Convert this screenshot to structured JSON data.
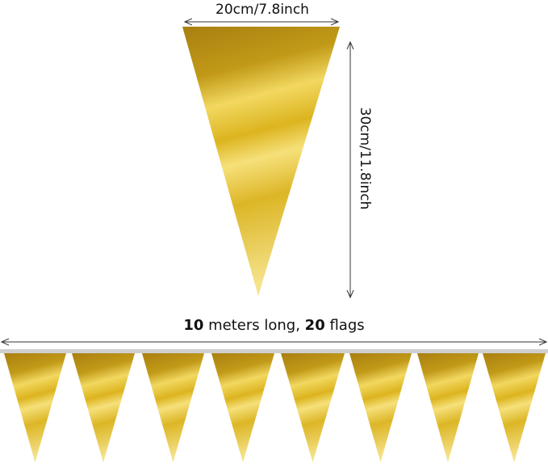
{
  "dimensions": {
    "width_label": "20cm/7.8inch",
    "height_label": "30cm/11.8inch",
    "length_number": "10",
    "length_text": " meters long, ",
    "flags_number": "20",
    "flags_text": " flags"
  },
  "banner": {
    "visible_flags": 8,
    "flag_color": "gold"
  },
  "colors": {
    "gold_dark": "#a97f10",
    "gold_mid": "#d9b21e",
    "gold_light": "#f6df72",
    "string": "#cfcfcf",
    "arrow": "#333333"
  }
}
